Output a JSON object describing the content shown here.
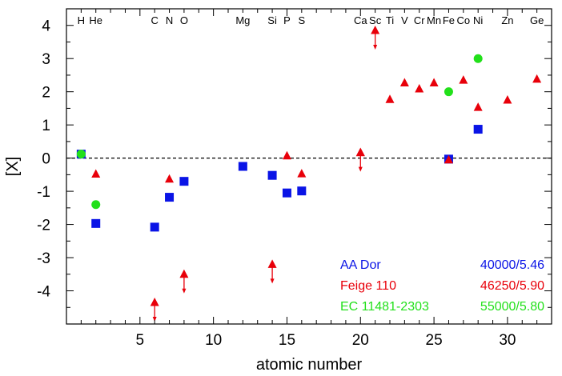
{
  "chart_data": {
    "type": "scatter",
    "xlabel": "atomic number",
    "ylabel": "[X]",
    "xlim": [
      0,
      33
    ],
    "ylim": [
      -5,
      4.5
    ],
    "x_ticks": [
      5,
      10,
      15,
      20,
      25,
      30
    ],
    "y_ticks": [
      4,
      3,
      2,
      1,
      0,
      -1,
      -2,
      -3,
      -4
    ],
    "x_minor_step": 1,
    "y_minor_step": 0.5,
    "reference_line": {
      "y": 0,
      "style": "dashed"
    },
    "element_labels": [
      {
        "label": "H",
        "x": 1
      },
      {
        "label": "He",
        "x": 2
      },
      {
        "label": "C",
        "x": 6
      },
      {
        "label": "N",
        "x": 7
      },
      {
        "label": "O",
        "x": 8
      },
      {
        "label": "Mg",
        "x": 12
      },
      {
        "label": "Si",
        "x": 14
      },
      {
        "label": "P",
        "x": 15
      },
      {
        "label": "S",
        "x": 16
      },
      {
        "label": "Ca",
        "x": 20
      },
      {
        "label": "Sc",
        "x": 21
      },
      {
        "label": "Ti",
        "x": 22
      },
      {
        "label": "V",
        "x": 23
      },
      {
        "label": "Cr",
        "x": 24
      },
      {
        "label": "Mn",
        "x": 25
      },
      {
        "label": "Fe",
        "x": 26
      },
      {
        "label": "Co",
        "x": 27
      },
      {
        "label": "Ni",
        "x": 28
      },
      {
        "label": "Zn",
        "x": 30
      },
      {
        "label": "Ge",
        "x": 32
      }
    ],
    "series": [
      {
        "name": "AA Dor",
        "params": "40000/5.46",
        "color": "#0a14e6",
        "marker": "square",
        "points": [
          {
            "x": 1,
            "y": 0.12
          },
          {
            "x": 2,
            "y": -1.97
          },
          {
            "x": 6,
            "y": -2.08
          },
          {
            "x": 7,
            "y": -1.18
          },
          {
            "x": 8,
            "y": -0.7
          },
          {
            "x": 12,
            "y": -0.25
          },
          {
            "x": 14,
            "y": -0.52
          },
          {
            "x": 15,
            "y": -1.05
          },
          {
            "x": 16,
            "y": -0.99
          },
          {
            "x": 26,
            "y": -0.03
          },
          {
            "x": 28,
            "y": 0.87
          }
        ]
      },
      {
        "name": "Feige 110",
        "params": "46250/5.90",
        "color": "#e8000a",
        "marker": "triangle",
        "points": [
          {
            "x": 2,
            "y": -0.48
          },
          {
            "x": 7,
            "y": -0.63
          },
          {
            "x": 15,
            "y": 0.07
          },
          {
            "x": 16,
            "y": -0.47
          },
          {
            "x": 20,
            "y": 0.17
          },
          {
            "x": 22,
            "y": 1.77
          },
          {
            "x": 23,
            "y": 2.27
          },
          {
            "x": 24,
            "y": 2.09
          },
          {
            "x": 25,
            "y": 2.27
          },
          {
            "x": 26,
            "y": -0.05
          },
          {
            "x": 27,
            "y": 2.35
          },
          {
            "x": 28,
            "y": 1.53
          },
          {
            "x": 30,
            "y": 1.75
          },
          {
            "x": 32,
            "y": 2.38
          }
        ],
        "upper_limits": [
          {
            "x": 6,
            "y": -4.35
          },
          {
            "x": 8,
            "y": -3.5
          },
          {
            "x": 14,
            "y": -3.2
          },
          {
            "x": 20,
            "y": 0.17
          },
          {
            "x": 21,
            "y": 3.85
          }
        ]
      },
      {
        "name": "EC 11481-2303",
        "params": "55000/5.80",
        "color": "#22e01a",
        "marker": "circle",
        "points": [
          {
            "x": 1,
            "y": 0.12
          },
          {
            "x": 2,
            "y": -1.4
          },
          {
            "x": 26,
            "y": 2.0
          },
          {
            "x": 28,
            "y": 3.0
          }
        ]
      }
    ]
  }
}
